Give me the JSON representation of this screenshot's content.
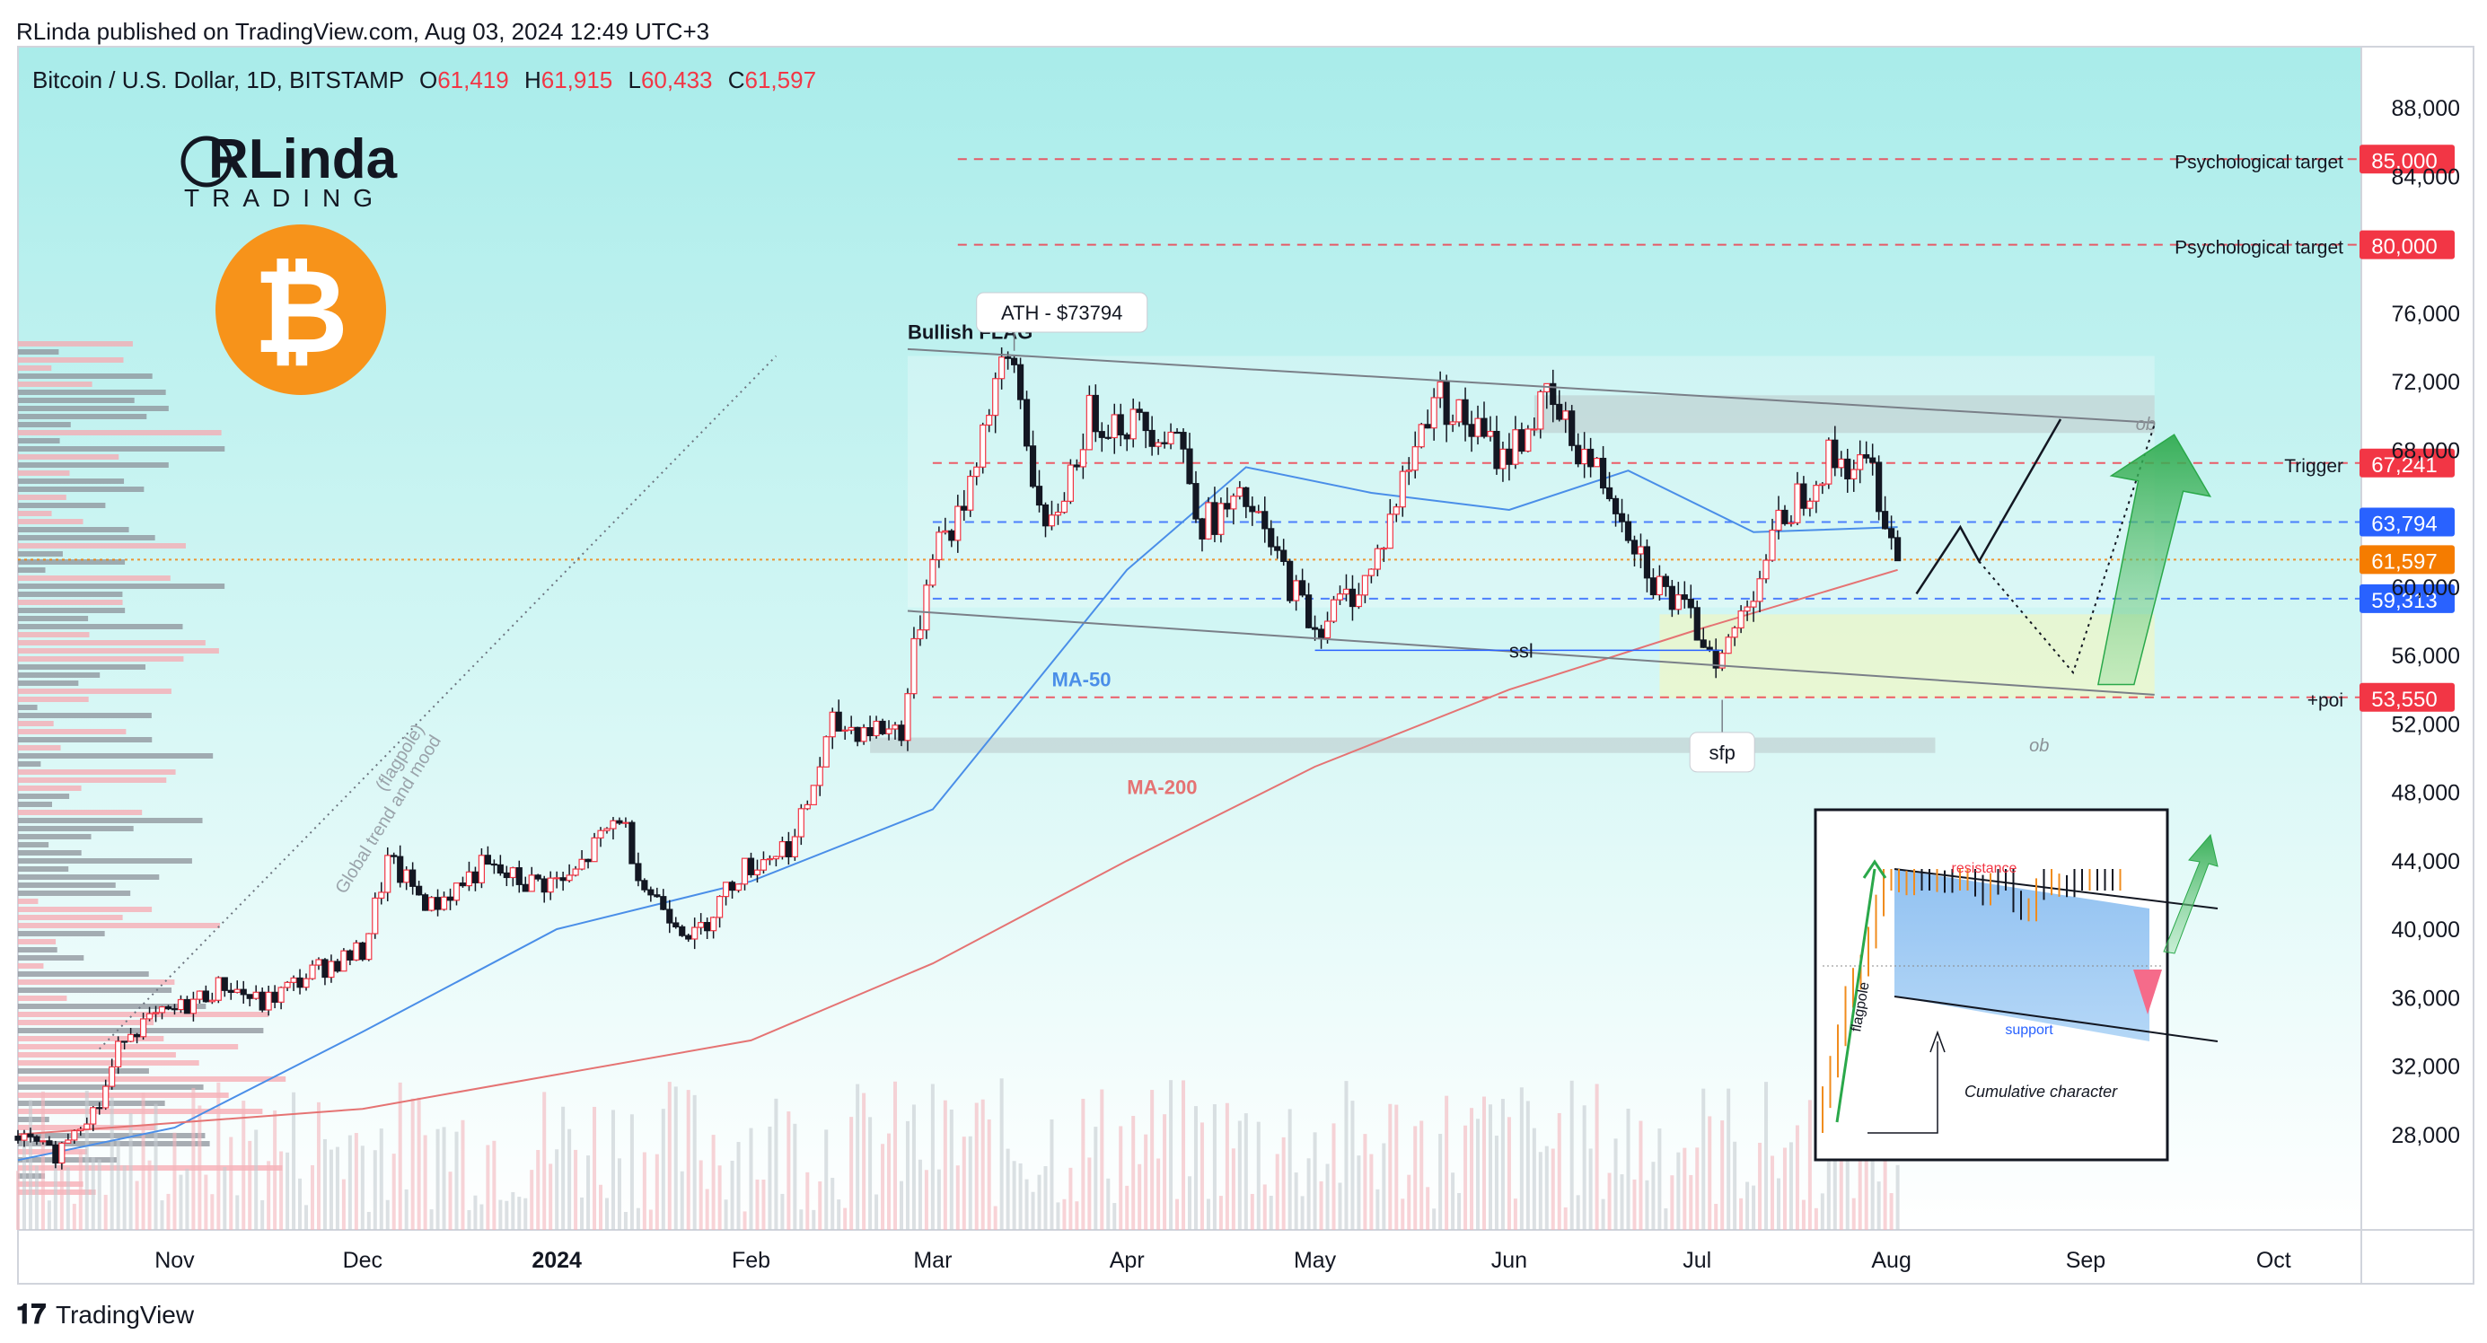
{
  "header": {
    "published": "RLinda published on TradingView.com, Aug 03, 2024 12:49 UTC+3"
  },
  "symbol": {
    "title": "Bitcoin / U.S. Dollar, 1D, BITSTAMP",
    "o_label": "O",
    "o": "61,419",
    "h_label": "H",
    "h": "61,915",
    "l_label": "L",
    "l": "60,433",
    "c_label": "C",
    "c": "61,597"
  },
  "brand": {
    "logo_top": "RLinda",
    "logo_bottom": "TRADING",
    "coin_symbol": "₿"
  },
  "footer": {
    "logo": "TradingView"
  },
  "colors": {
    "bg_top": "#a9ecea",
    "bg_bottom": "#ffffff",
    "up": "#ffffff",
    "down": "#131722",
    "ma50": "#4a8ee8",
    "ma200": "#e57373",
    "red_tag": "#f23645",
    "blue_tag": "#2962ff",
    "orange_tag": "#f57c00"
  },
  "chart_data": {
    "type": "candlestick",
    "title": "Bitcoin / U.S. Dollar, 1D, BITSTAMP",
    "ylim": [
      24000,
      90000
    ],
    "y_ticks": [
      "88,000",
      "84,000",
      "76,000",
      "72,000",
      "68,000",
      "60,000",
      "56,000",
      "52,000",
      "48,000",
      "44,000",
      "40,000",
      "36,000",
      "32,000",
      "28,000"
    ],
    "x_ticks": [
      "Nov",
      "Dec",
      "2024",
      "Feb",
      "Mar",
      "Apr",
      "May",
      "Jun",
      "Jul",
      "Aug",
      "Sep",
      "Oct"
    ],
    "x_range": [
      "2023-10-07",
      "2024-10-15"
    ],
    "close_path": [
      [
        "2023-10-07",
        27900
      ],
      [
        "2023-10-13",
        26800
      ],
      [
        "2023-10-16",
        28500
      ],
      [
        "2023-10-20",
        29700
      ],
      [
        "2023-10-24",
        34000
      ],
      [
        "2023-11-01",
        35200
      ],
      [
        "2023-11-09",
        36800
      ],
      [
        "2023-11-15",
        35600
      ],
      [
        "2023-11-24",
        37700
      ],
      [
        "2023-12-01",
        38700
      ],
      [
        "2023-12-05",
        43900
      ],
      [
        "2023-12-12",
        41300
      ],
      [
        "2023-12-20",
        43600
      ],
      [
        "2023-12-27",
        42700
      ],
      [
        "2024-01-03",
        42800
      ],
      [
        "2024-01-11",
        46700
      ],
      [
        "2024-01-15",
        42500
      ],
      [
        "2024-01-23",
        39500
      ],
      [
        "2024-01-30",
        43300
      ],
      [
        "2024-02-08",
        45200
      ],
      [
        "2024-02-14",
        51800
      ],
      [
        "2024-02-25",
        51700
      ],
      [
        "2024-03-01",
        62500
      ],
      [
        "2024-03-05",
        63800
      ],
      [
        "2024-03-11",
        72000
      ],
      [
        "2024-03-14",
        73000
      ],
      [
        "2024-03-19",
        62500
      ],
      [
        "2024-03-26",
        70000
      ],
      [
        "2024-04-09",
        69100
      ],
      [
        "2024-04-13",
        63700
      ],
      [
        "2024-04-20",
        64900
      ],
      [
        "2024-05-01",
        57600
      ],
      [
        "2024-05-10",
        60800
      ],
      [
        "2024-05-20",
        71400
      ],
      [
        "2024-05-31",
        67500
      ],
      [
        "2024-06-07",
        70800
      ],
      [
        "2024-06-18",
        65200
      ],
      [
        "2024-06-24",
        60500
      ],
      [
        "2024-07-05",
        55800
      ],
      [
        "2024-07-15",
        64300
      ],
      [
        "2024-07-22",
        67500
      ],
      [
        "2024-07-29",
        66800
      ],
      [
        "2024-08-02",
        61597
      ]
    ],
    "ma50_path": [
      [
        "2023-10-07",
        26500
      ],
      [
        "2023-11-01",
        28400
      ],
      [
        "2023-12-01",
        34000
      ],
      [
        "2024-01-01",
        40000
      ],
      [
        "2024-02-01",
        42800
      ],
      [
        "2024-03-01",
        47000
      ],
      [
        "2024-04-01",
        61000
      ],
      [
        "2024-04-20",
        67000
      ],
      [
        "2024-05-10",
        65500
      ],
      [
        "2024-06-01",
        64500
      ],
      [
        "2024-06-20",
        66800
      ],
      [
        "2024-07-10",
        63200
      ],
      [
        "2024-08-02",
        63500
      ]
    ],
    "ma200_path": [
      [
        "2023-10-07",
        28000
      ],
      [
        "2023-12-01",
        29500
      ],
      [
        "2024-01-01",
        31500
      ],
      [
        "2024-02-01",
        33500
      ],
      [
        "2024-03-01",
        38000
      ],
      [
        "2024-04-01",
        44000
      ],
      [
        "2024-05-01",
        49500
      ],
      [
        "2024-06-01",
        54000
      ],
      [
        "2024-07-01",
        57500
      ],
      [
        "2024-08-02",
        61000
      ]
    ],
    "price_tags": [
      {
        "value": 85000,
        "label": "85,000",
        "color": "#f23645",
        "note": "Psychological target"
      },
      {
        "value": 80000,
        "label": "80,000",
        "color": "#f23645",
        "note": "Psychological target"
      },
      {
        "value": 67241,
        "label": "67,241",
        "color": "#f23645",
        "note": "Trigger"
      },
      {
        "value": 63794,
        "label": "63,794",
        "color": "#2962ff",
        "note": ""
      },
      {
        "value": 61597,
        "label": "61,597",
        "color": "#f57c00",
        "note": ""
      },
      {
        "value": 59313,
        "label": "59,313",
        "color": "#2962ff",
        "note": ""
      },
      {
        "value": 53550,
        "label": "53,550",
        "color": "#f23645",
        "note": "+poi"
      }
    ],
    "annotations": {
      "ath": "ATH - $73794",
      "flag": "Bullish FLAG",
      "ma50": "MA-50",
      "ma200": "MA-200",
      "ssl": "ssl",
      "sfp": "sfp",
      "ob": "ob",
      "trend": "Global trend and mood",
      "trend_sub": "(flagpole)"
    },
    "inset": {
      "resistance": "resistance",
      "support": "support",
      "flagpole": "flagpole",
      "caption": "Cumulative character"
    }
  }
}
